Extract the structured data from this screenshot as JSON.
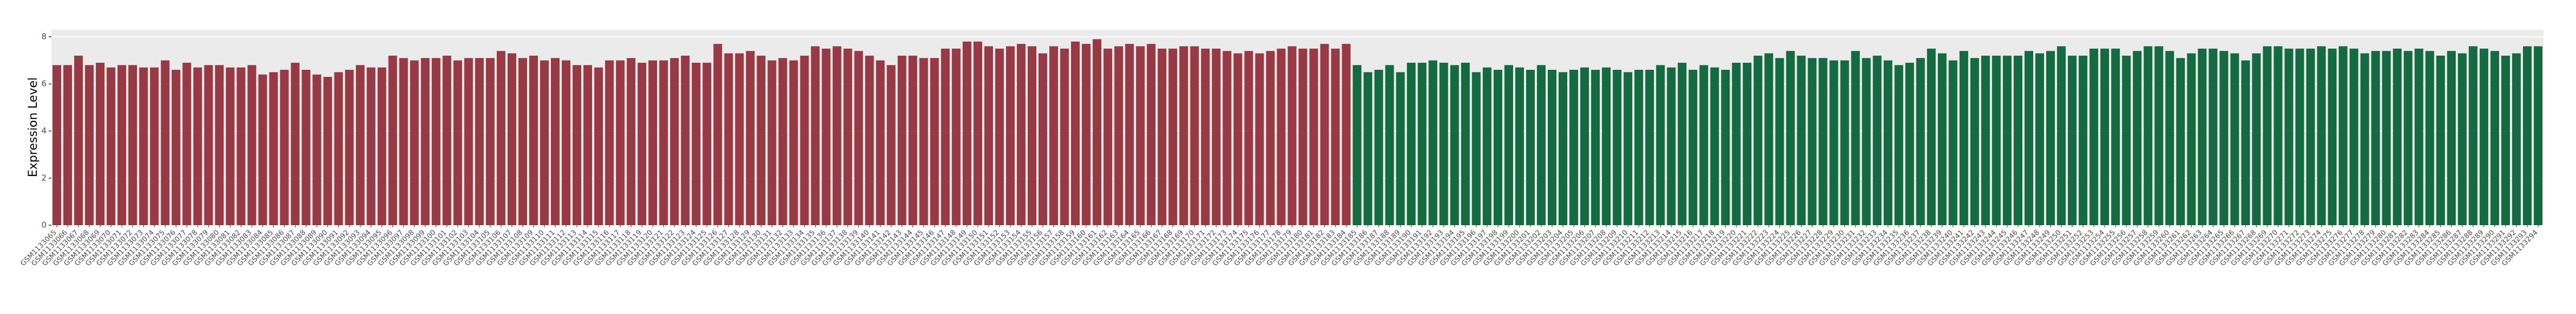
{
  "chart_data": {
    "type": "bar",
    "y_label": "Expression Level",
    "ylim": [
      0,
      8.3
    ],
    "yticks": [
      0,
      2,
      4,
      6,
      8
    ],
    "grid": true,
    "categories": [
      "GSM1133065",
      "GSM1133066",
      "GSM1133067",
      "GSM1133068",
      "GSM1133069",
      "GSM1133070",
      "GSM1133071",
      "GSM1133072",
      "GSM1133073",
      "GSM1133074",
      "GSM1133075",
      "GSM1133076",
      "GSM1133077",
      "GSM1133078",
      "GSM1133079",
      "GSM1133080",
      "GSM1133081",
      "GSM1133082",
      "GSM1133083",
      "GSM1133084",
      "GSM1133085",
      "GSM1133086",
      "GSM1133087",
      "GSM1133088",
      "GSM1133089",
      "GSM1133090",
      "GSM1133091",
      "GSM1133092",
      "GSM1133093",
      "GSM1133094",
      "GSM1133095",
      "GSM1133096",
      "GSM1133097",
      "GSM1133098",
      "GSM1133099",
      "GSM1133100",
      "GSM1133101",
      "GSM1133102",
      "GSM1133103",
      "GSM1133104",
      "GSM1133105",
      "GSM1133106",
      "GSM1133107",
      "GSM1133108",
      "GSM1133109",
      "GSM1133110",
      "GSM1133111",
      "GSM1133112",
      "GSM1133113",
      "GSM1133114",
      "GSM1133115",
      "GSM1133116",
      "GSM1133117",
      "GSM1133118",
      "GSM1133119",
      "GSM1133120",
      "GSM1133121",
      "GSM1133122",
      "GSM1133123",
      "GSM1133124",
      "GSM1133125",
      "GSM1133126",
      "GSM1133127",
      "GSM1133128",
      "GSM1133129",
      "GSM1133130",
      "GSM1133131",
      "GSM1133132",
      "GSM1133133",
      "GSM1133134",
      "GSM1133135",
      "GSM1133136",
      "GSM1133137",
      "GSM1133138",
      "GSM1133139",
      "GSM1133140",
      "GSM1133141",
      "GSM1133142",
      "GSM1133143",
      "GSM1133144",
      "GSM1133145",
      "GSM1133146",
      "GSM1133147",
      "GSM1133148",
      "GSM1133149",
      "GSM1133150",
      "GSM1133151",
      "GSM1133152",
      "GSM1133153",
      "GSM1133154",
      "GSM1133155",
      "GSM1133156",
      "GSM1133157",
      "GSM1133158",
      "GSM1133159",
      "GSM1133160",
      "GSM1133161",
      "GSM1133162",
      "GSM1133163",
      "GSM1133164",
      "GSM1133165",
      "GSM1133166",
      "GSM1133167",
      "GSM1133168",
      "GSM1133169",
      "GSM1133170",
      "GSM1133171",
      "GSM1133172",
      "GSM1133173",
      "GSM1133174",
      "GSM1133175",
      "GSM1133176",
      "GSM1133177",
      "GSM1133178",
      "GSM1133179",
      "GSM1133180",
      "GSM1133181",
      "GSM1133182",
      "GSM1133183",
      "GSM1133184",
      "GSM1133185",
      "GSM1133186",
      "GSM1133187",
      "GSM1133188",
      "GSM1133189",
      "GSM1133190",
      "GSM1133191",
      "GSM1133192",
      "GSM1133193",
      "GSM1133194",
      "GSM1133195",
      "GSM1133196",
      "GSM1133197",
      "GSM1133198",
      "GSM1133199",
      "GSM1133200",
      "GSM1133201",
      "GSM1133202",
      "GSM1133203",
      "GSM1133204",
      "GSM1133205",
      "GSM1133206",
      "GSM1133207",
      "GSM1133208",
      "GSM1133209",
      "GSM1133210",
      "GSM1133211",
      "GSM1133212",
      "GSM1133213",
      "GSM1133214",
      "GSM1133215",
      "GSM1133216",
      "GSM1133217",
      "GSM1133218",
      "GSM1133219",
      "GSM1133220",
      "GSM1133221",
      "GSM1133222",
      "GSM1133223",
      "GSM1133224",
      "GSM1133225",
      "GSM1133226",
      "GSM1133227",
      "GSM1133228",
      "GSM1133229",
      "GSM1133230",
      "GSM1133231",
      "GSM1133232",
      "GSM1133233",
      "GSM1133234",
      "GSM1133235",
      "GSM1133236",
      "GSM1133237",
      "GSM1133238",
      "GSM1133239",
      "GSM1133240",
      "GSM1133241",
      "GSM1133242",
      "GSM1133243",
      "GSM1133244",
      "GSM1133245",
      "GSM1133246",
      "GSM1133247",
      "GSM1133248",
      "GSM1133249",
      "GSM1133250",
      "GSM1133251",
      "GSM1133252",
      "GSM1133253",
      "GSM1133254",
      "GSM1133255",
      "GSM1133256",
      "GSM1133257",
      "GSM1133258",
      "GSM1133259",
      "GSM1133260",
      "GSM1133261",
      "GSM1133262",
      "GSM1133263",
      "GSM1133264",
      "GSM1133265",
      "GSM1133266",
      "GSM1133267",
      "GSM1133268",
      "GSM1133269",
      "GSM1133270",
      "GSM1133271",
      "GSM1133272",
      "GSM1133273",
      "GSM1133274",
      "GSM1133275",
      "GSM1133276",
      "GSM1133277",
      "GSM1133278",
      "GSM1133279",
      "GSM1133280",
      "GSM1133281",
      "GSM1133282",
      "GSM1133283",
      "GSM1133284",
      "GSM1133285",
      "GSM1133286",
      "GSM1133287",
      "GSM1133288",
      "GSM1133289",
      "GSM1133290",
      "GSM1133291",
      "GSM1133292",
      "GSM1133293",
      "GSM1133294"
    ],
    "series": [
      {
        "color": "#983a45",
        "values": [
          6.8,
          6.8,
          7.2,
          6.8,
          6.9,
          6.7,
          6.8,
          6.8,
          6.7,
          6.7,
          7.0,
          6.6,
          6.9,
          6.7,
          6.8,
          6.8,
          6.7,
          6.7,
          6.8,
          6.4,
          6.5,
          6.6,
          6.9,
          6.6,
          6.4,
          6.3,
          6.5,
          6.6,
          6.8,
          6.7,
          6.7,
          7.2,
          7.1,
          7.0,
          7.1,
          7.1,
          7.2,
          7.0,
          7.1,
          7.1,
          7.1,
          7.4,
          7.3,
          7.1,
          7.2,
          7.0,
          7.1,
          7.0,
          6.8,
          6.8,
          6.7,
          7.0,
          7.0,
          7.1,
          6.9,
          7.0,
          7.0,
          7.1,
          7.2,
          6.9,
          6.9,
          7.7,
          7.3,
          7.3,
          7.4,
          7.2,
          7.0,
          7.1,
          7.0,
          7.2,
          7.6,
          7.5,
          7.6,
          7.5,
          7.4,
          7.2,
          7.0,
          6.8,
          7.2,
          7.2,
          7.1,
          7.1,
          7.5,
          7.5,
          7.8,
          7.8,
          7.6,
          7.5,
          7.6,
          7.7,
          7.6,
          7.3,
          7.6,
          7.5,
          7.8,
          7.7,
          7.9,
          7.5,
          7.6,
          7.7,
          7.6,
          7.7,
          7.5,
          7.5,
          7.6,
          7.6,
          7.5,
          7.5,
          7.4,
          7.3,
          7.4,
          7.3,
          7.4,
          7.5,
          7.6,
          7.5,
          7.5,
          7.7,
          7.5,
          7.7,
          null,
          null,
          null,
          null,
          null,
          null,
          null,
          null,
          null,
          null,
          null,
          null,
          null,
          null,
          null,
          null,
          null,
          null,
          null,
          null,
          null,
          null,
          null,
          null,
          null,
          null,
          null,
          null,
          null,
          null,
          null,
          null,
          null,
          null,
          null,
          null,
          null,
          null,
          null,
          null,
          null,
          null,
          null,
          null,
          null,
          null,
          null,
          null,
          null,
          null,
          null,
          null,
          null,
          null,
          null,
          null,
          null,
          null,
          null,
          null,
          null,
          null,
          null,
          null,
          null,
          null,
          null,
          null,
          null,
          null,
          null,
          null,
          null,
          null,
          null,
          null,
          null,
          null,
          null,
          null,
          null,
          null,
          null,
          null,
          null,
          null,
          null,
          null,
          null,
          null,
          null,
          null,
          null,
          null,
          null,
          null,
          null,
          null,
          null,
          null,
          null,
          null,
          null,
          null,
          null,
          null,
          null,
          null,
          null,
          null
        ]
      },
      {
        "color": "#146b42",
        "values": [
          null,
          null,
          null,
          null,
          null,
          null,
          null,
          null,
          null,
          null,
          null,
          null,
          null,
          null,
          null,
          null,
          null,
          null,
          null,
          null,
          null,
          null,
          null,
          null,
          null,
          null,
          null,
          null,
          null,
          null,
          null,
          null,
          null,
          null,
          null,
          null,
          null,
          null,
          null,
          null,
          null,
          null,
          null,
          null,
          null,
          null,
          null,
          null,
          null,
          null,
          null,
          null,
          null,
          null,
          null,
          null,
          null,
          null,
          null,
          null,
          null,
          null,
          null,
          null,
          null,
          null,
          null,
          null,
          null,
          null,
          null,
          null,
          null,
          null,
          null,
          null,
          null,
          null,
          null,
          null,
          null,
          null,
          null,
          null,
          null,
          null,
          null,
          null,
          null,
          null,
          null,
          null,
          null,
          null,
          null,
          null,
          null,
          null,
          null,
          null,
          null,
          null,
          null,
          null,
          null,
          null,
          null,
          null,
          null,
          null,
          null,
          null,
          null,
          null,
          null,
          null,
          null,
          null,
          null,
          null,
          6.8,
          6.5,
          6.6,
          6.8,
          6.5,
          6.9,
          6.9,
          7.0,
          6.9,
          6.8,
          6.9,
          6.5,
          6.7,
          6.6,
          6.8,
          6.7,
          6.6,
          6.8,
          6.6,
          6.5,
          6.6,
          6.7,
          6.6,
          6.7,
          6.6,
          6.5,
          6.6,
          6.6,
          6.8,
          6.7,
          6.9,
          6.6,
          6.8,
          6.7,
          6.6,
          6.9,
          6.9,
          7.2,
          7.3,
          7.1,
          7.4,
          7.2,
          7.1,
          7.1,
          7.0,
          7.0,
          7.4,
          7.1,
          7.2,
          7.0,
          6.8,
          6.9,
          7.1,
          7.5,
          7.3,
          7.0,
          7.4,
          7.1,
          7.2,
          7.2,
          7.2,
          7.2,
          7.4,
          7.3,
          7.4,
          7.6,
          7.2,
          7.2,
          7.5,
          7.5,
          7.5,
          7.2,
          7.4,
          7.6,
          7.6,
          7.4,
          7.1,
          7.3,
          7.5,
          7.5,
          7.4,
          7.3,
          7.0,
          7.3,
          7.6,
          7.6,
          7.5,
          7.5,
          7.5,
          7.6,
          7.5,
          7.6,
          7.5,
          7.3,
          7.4,
          7.4,
          7.5,
          7.4,
          7.5,
          7.4,
          7.2,
          7.4,
          7.3,
          7.6,
          7.5,
          7.4,
          7.2,
          7.3,
          7.6,
          7.6
        ]
      }
    ]
  }
}
